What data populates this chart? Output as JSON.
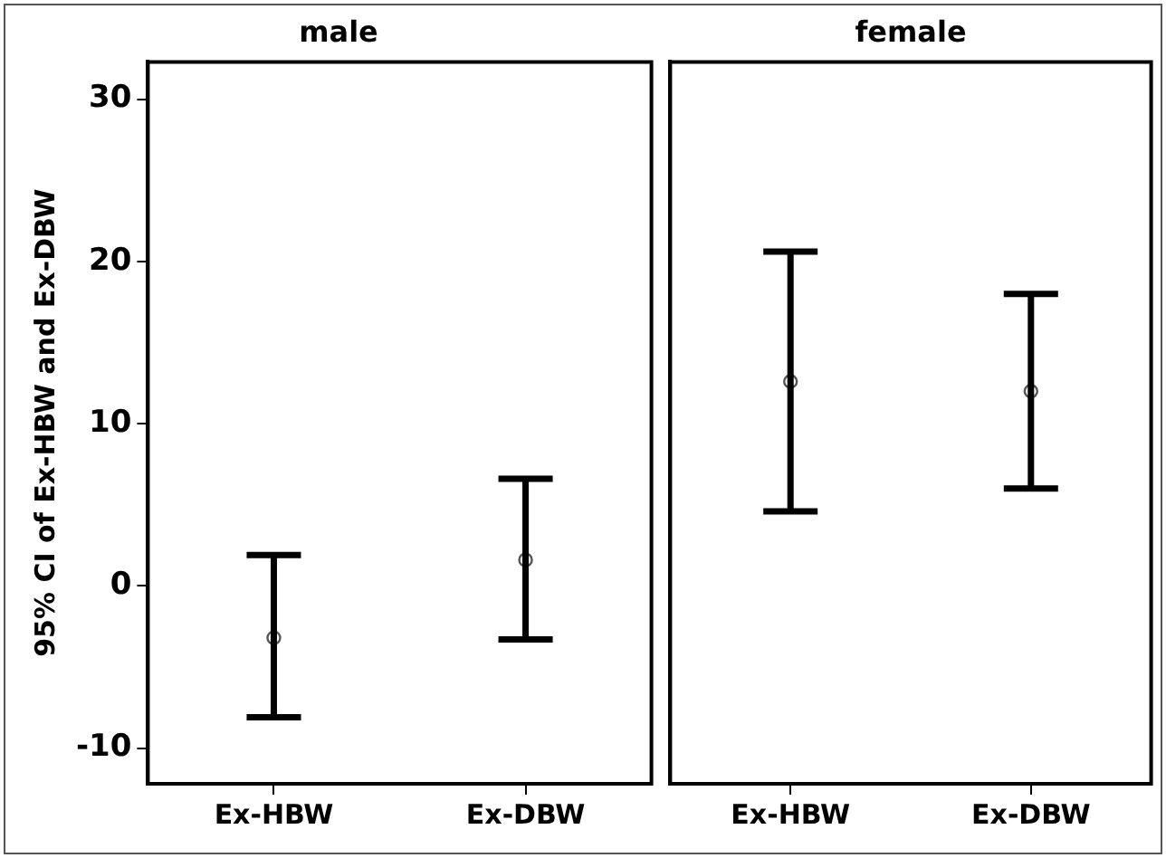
{
  "chart_data": [
    {
      "type": "scatter",
      "title": "male",
      "ylabel": "95% CI of Ex-HBW and Ex-DBW",
      "categories": [
        "Ex-HBW",
        "Ex-DBW"
      ],
      "values": [
        -3.2,
        1.6
      ],
      "errors": [
        [
          -8.1,
          1.9
        ],
        [
          -3.3,
          6.6
        ]
      ],
      "color": "#555555",
      "marker": "circle",
      "ylim": [
        -12.2,
        32.3
      ],
      "yticks": [
        -10,
        0,
        10,
        20,
        30
      ],
      "grid": false
    },
    {
      "type": "scatter",
      "title": "female",
      "categories": [
        "Ex-HBW",
        "Ex-DBW"
      ],
      "values": [
        12.6,
        12.0
      ],
      "errors": [
        [
          4.6,
          20.6
        ],
        [
          6.0,
          18.0
        ]
      ],
      "color": "#555555",
      "marker": "circle",
      "ylim": [
        -12.2,
        32.3
      ],
      "yticks": [
        -10,
        0,
        10,
        20,
        30
      ],
      "grid": false,
      "tick_labels": "x"
    }
  ]
}
